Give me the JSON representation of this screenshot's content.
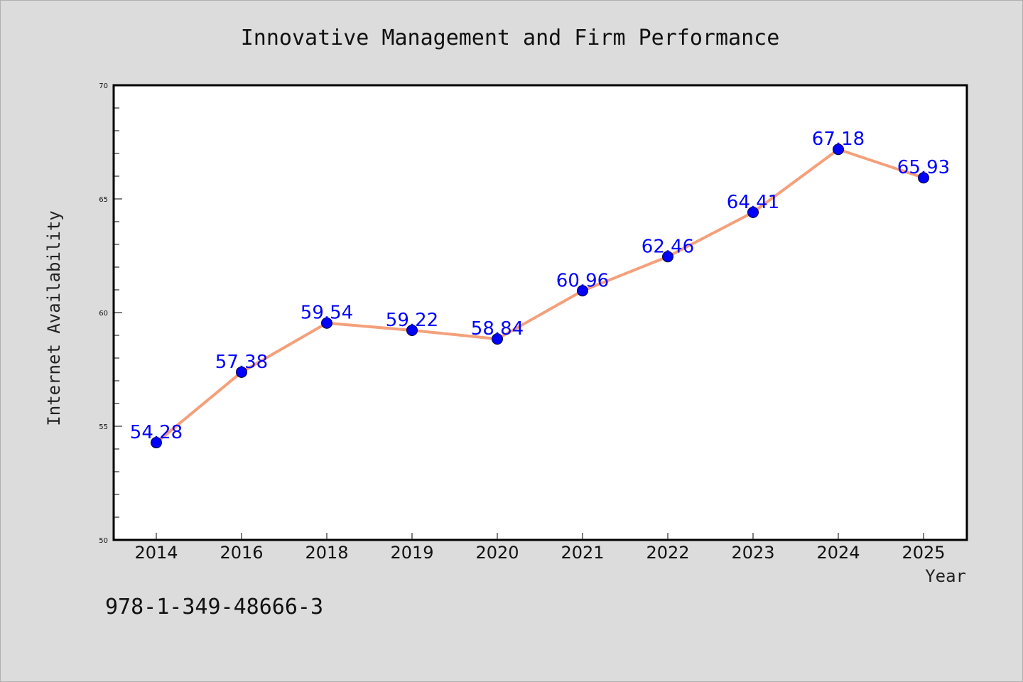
{
  "chart_data": {
    "type": "line",
    "title": "Innovative Management and Firm Performance",
    "xlabel": "Year",
    "ylabel": "Internet Availability",
    "categories": [
      "2014",
      "2016",
      "2018",
      "2019",
      "2020",
      "2021",
      "2022",
      "2023",
      "2024",
      "2025"
    ],
    "series": [
      {
        "values": [
          54.28,
          57.38,
          59.54,
          59.22,
          58.84,
          60.96,
          62.46,
          64.41,
          67.18,
          65.93
        ],
        "labels": [
          "54.28",
          "57.38",
          "59.54",
          "59.22",
          "58.84",
          "60.96",
          "62.46",
          "64.41",
          "67.18",
          "65.93"
        ],
        "line_color": "#f4a07a",
        "marker_color": "#0000ff"
      }
    ],
    "ylim": [
      50,
      70
    ],
    "yticks": [
      50,
      55,
      60,
      65,
      70
    ],
    "ytick_labels": [
      "50",
      "55",
      "60",
      "65",
      "70"
    ],
    "grid": false,
    "legend": "none"
  },
  "annotation": {
    "isbn": "978-1-349-48666-3"
  },
  "colors": {
    "background": "#dcdcdc",
    "plot_background": "#ffffff",
    "axis": "#000000"
  }
}
